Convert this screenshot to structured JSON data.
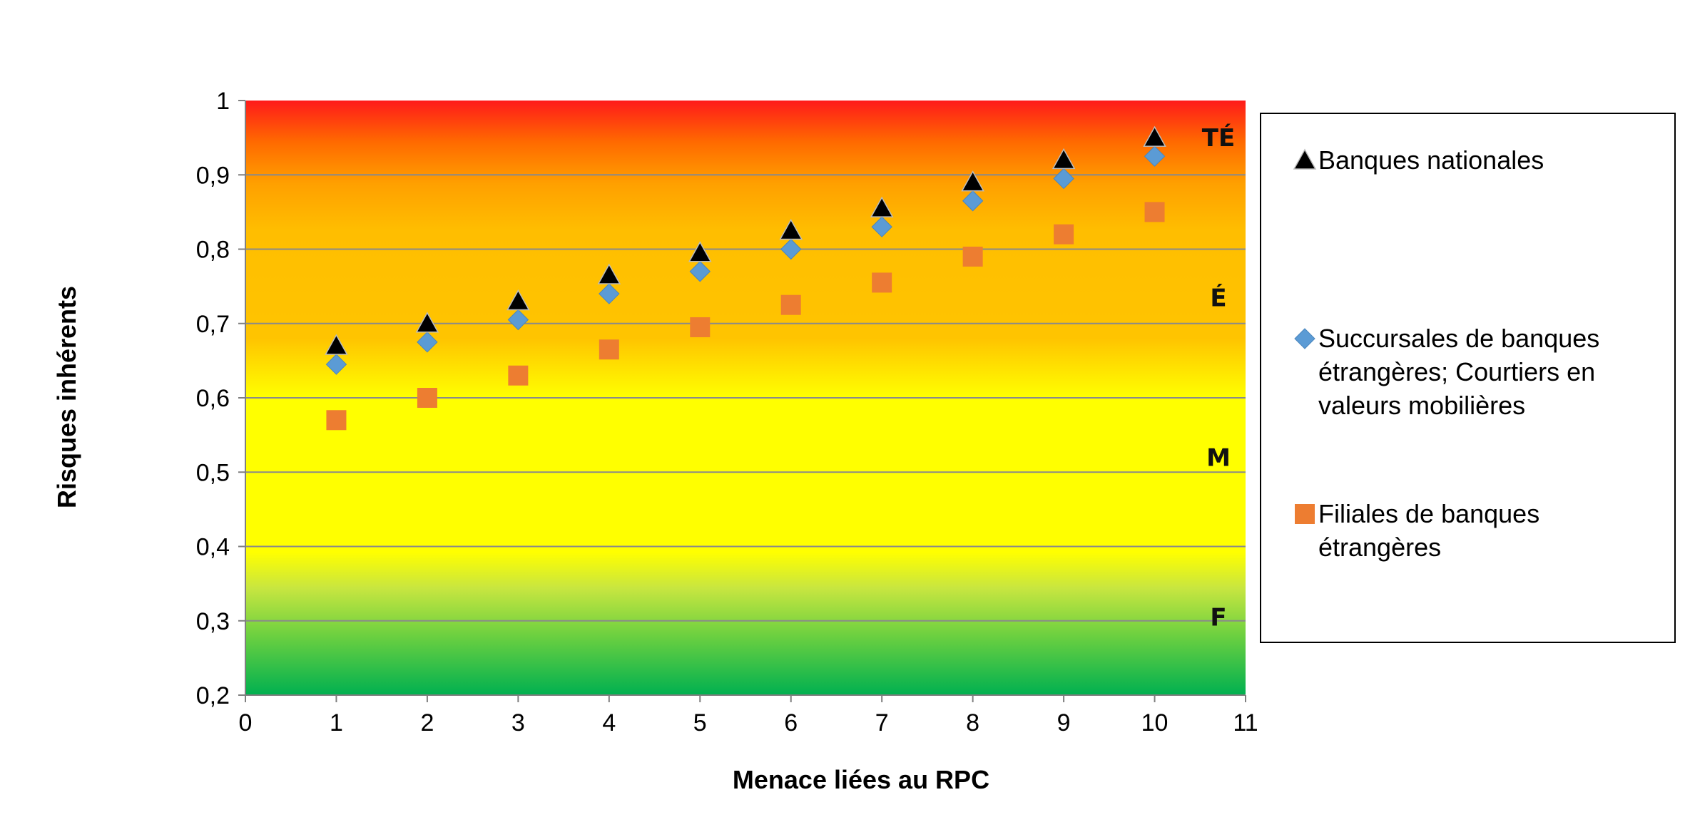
{
  "chart_data": {
    "type": "scatter",
    "title": "",
    "xlabel": "Menace liées au RPC",
    "ylabel": "Risques inhérents",
    "xlim": [
      0,
      11
    ],
    "ylim": [
      0.2,
      1
    ],
    "x_ticks": [
      "0",
      "1",
      "2",
      "3",
      "4",
      "5",
      "6",
      "7",
      "8",
      "9",
      "10",
      "11"
    ],
    "y_ticks": [
      "0,2",
      "0,3",
      "0,4",
      "0,5",
      "0,6",
      "0,7",
      "0,8",
      "0,9",
      "1"
    ],
    "grid": "horizontal",
    "legend_position": "right",
    "zones": [
      {
        "label": "TÉ",
        "y": 0.95
      },
      {
        "label": "É",
        "y": 0.735
      },
      {
        "label": "M",
        "y": 0.52
      },
      {
        "label": "F",
        "y": 0.305
      }
    ],
    "background_gradient": [
      "#ff1a1a",
      "#ff9a00",
      "#ffc000",
      "#ffff00",
      "#00b050"
    ],
    "series": [
      {
        "name": "Banques nationales",
        "marker": "triangle",
        "color": "#000000",
        "x": [
          1,
          2,
          3,
          4,
          5,
          6,
          7,
          8,
          9,
          10
        ],
        "y": [
          0.67,
          0.7,
          0.73,
          0.765,
          0.795,
          0.825,
          0.855,
          0.89,
          0.92,
          0.95
        ]
      },
      {
        "name": "Succursales de banques étrangères; Courtiers en valeurs mobilières",
        "marker": "diamond",
        "color": "#5b9bd5",
        "x": [
          1,
          2,
          3,
          4,
          5,
          6,
          7,
          8,
          9,
          10
        ],
        "y": [
          0.645,
          0.675,
          0.705,
          0.74,
          0.77,
          0.8,
          0.83,
          0.865,
          0.895,
          0.925
        ]
      },
      {
        "name": "Filiales de banques étrangères",
        "marker": "square",
        "color": "#ed7d31",
        "x": [
          1,
          2,
          3,
          4,
          5,
          6,
          7,
          8,
          9,
          10
        ],
        "y": [
          0.57,
          0.6,
          0.63,
          0.665,
          0.695,
          0.725,
          0.755,
          0.79,
          0.82,
          0.85
        ]
      }
    ]
  },
  "legend": {
    "entries": [
      {
        "lines": [
          "Banques nationales"
        ]
      },
      {
        "lines": [
          "Succursales de banques",
          "étrangères; Courtiers en",
          "valeurs mobilières"
        ]
      },
      {
        "lines": [
          "Filiales de banques",
          "étrangères"
        ]
      }
    ]
  }
}
